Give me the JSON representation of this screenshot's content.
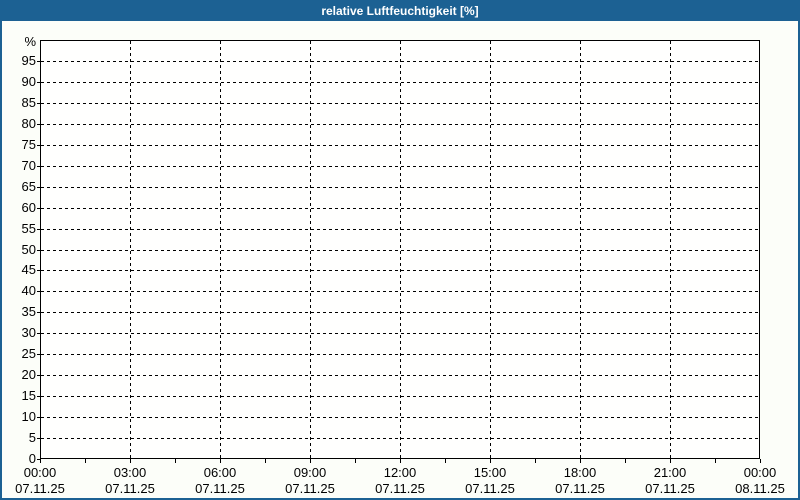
{
  "window": {
    "title": "relative Luftfeuchtigkeit [%]"
  },
  "colors": {
    "frame_blue": "#1c6193",
    "title_text": "#ffffff",
    "background": "#fcfef9",
    "plot_background": "#fffffe",
    "axis_and_grid": "#000000"
  },
  "chart_data": {
    "type": "line",
    "title": "relative Luftfeuchtigkeit [%]",
    "ylabel": "%",
    "ylim": [
      0,
      100
    ],
    "ytick_step": 5,
    "ytick_labels": [
      "0",
      "5",
      "10",
      "15",
      "20",
      "25",
      "30",
      "35",
      "40",
      "45",
      "50",
      "55",
      "60",
      "65",
      "70",
      "75",
      "80",
      "85",
      "90",
      "95"
    ],
    "ytop_label": "%",
    "x_axis": {
      "range_hours": [
        0,
        24
      ],
      "major_step_hours": 3,
      "minor_step_hours": 1.5,
      "tick_times": [
        "00:00",
        "03:00",
        "06:00",
        "09:00",
        "12:00",
        "15:00",
        "18:00",
        "21:00",
        "00:00"
      ],
      "tick_dates": [
        "07.11.25",
        "07.11.25",
        "07.11.25",
        "07.11.25",
        "07.11.25",
        "07.11.25",
        "07.11.25",
        "07.11.25",
        "08.11.25"
      ]
    },
    "grid": "dashed",
    "legend": null,
    "series": []
  }
}
